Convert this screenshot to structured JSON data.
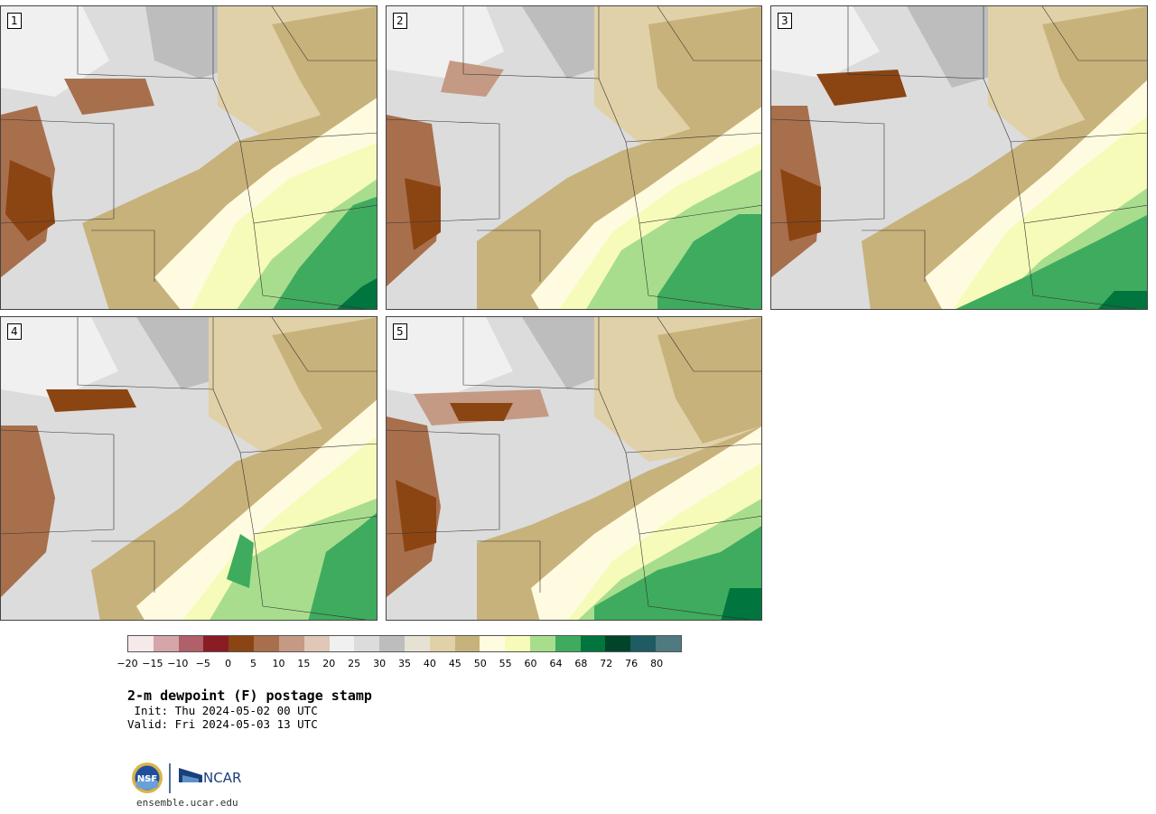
{
  "panels": [
    {
      "label": "1"
    },
    {
      "label": "2"
    },
    {
      "label": "3"
    },
    {
      "label": "4"
    },
    {
      "label": "5"
    }
  ],
  "colorbar": {
    "colors": [
      "#f5e9ea",
      "#d4a5a9",
      "#b06068",
      "#8a1c24",
      "#8b4513",
      "#a86f4c",
      "#c49a84",
      "#e0c7b8",
      "#f0f0f0",
      "#dcdcdc",
      "#bdbdbd",
      "#e6e2d3",
      "#e0d1a8",
      "#c8b27b",
      "#fffbe0",
      "#f7fbb9",
      "#a8dd8e",
      "#3fab5e",
      "#00753d",
      "#00442a",
      "#1f5b62",
      "#4f7a80"
    ],
    "tick_labels": [
      "−20",
      "−15",
      "−10",
      "−5",
      "0",
      "5",
      "10",
      "15",
      "20",
      "25",
      "30",
      "35",
      "40",
      "45",
      "50",
      "55",
      "60",
      "64",
      "68",
      "72",
      "76",
      "80"
    ]
  },
  "title": "2-m dewpoint (F) postage stamp",
  "init": " Init: Thu 2024-05-02 00 UTC",
  "valid": "Valid: Fri 2024-05-03 13 UTC",
  "logos": {
    "nsf_text": "NSF",
    "ncar_text": "NCAR"
  },
  "site": "ensemble.ucar.edu"
}
